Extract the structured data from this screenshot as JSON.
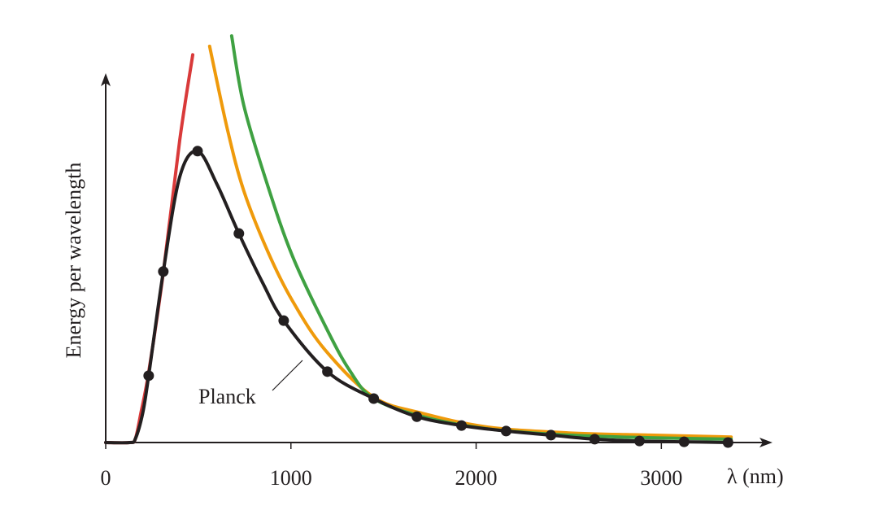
{
  "chart_data": {
    "type": "line",
    "x_label": "λ (nm)",
    "y_label": "Energy per wavelength",
    "xlim": [
      0,
      3600
    ],
    "ylim": [
      0,
      100
    ],
    "xticks": [
      0,
      1000,
      2000,
      3000
    ],
    "series": [
      {
        "color": "#d93a3a",
        "markers": false,
        "x": [
          0,
          130,
          160,
          190,
          232,
          311,
          400,
          470
        ],
        "values": [
          0,
          0,
          1,
          8,
          19,
          46,
          82,
          105
        ]
      },
      {
        "color": "#ef9a0b",
        "markers": false,
        "x": [
          561,
          658,
          746,
          877,
          1009,
          1184,
          1447,
          1711,
          2061,
          2500,
          2939,
          3377
        ],
        "values": [
          107.3,
          84.6,
          68.1,
          51.5,
          38.3,
          25.1,
          12.3,
          7.9,
          4.2,
          2.6,
          2.0,
          1.5
        ]
      },
      {
        "color": "#3fa142",
        "markers": false,
        "x": [
          680,
          746,
          877,
          1009,
          1184,
          1316,
          1447,
          1711,
          2061,
          2500,
          2939,
          3377
        ],
        "values": [
          110.1,
          91.2,
          69.2,
          50.4,
          31.7,
          19.6,
          11.9,
          7.0,
          3.7,
          2.0,
          1.3,
          0.9
        ]
      },
      {
        "name": "Planck",
        "color": "#231f20",
        "markers": false,
        "x": [
          0,
          130,
          160,
          200,
          232,
          311,
          400,
          496,
          600,
          719,
          850,
          961,
          1197,
          1447,
          1680,
          1921,
          2162,
          2404,
          2640,
          2882,
          3123,
          3360
        ],
        "values": [
          0,
          0,
          1,
          8,
          18.1,
          46.3,
          72,
          78.9,
          70,
          56.6,
          43,
          33,
          19.2,
          11.9,
          7.0,
          4.6,
          3.1,
          2.0,
          0.9,
          0.4,
          0.2,
          0
        ]
      },
      {
        "color": "#231f20",
        "markers": true,
        "line": false,
        "x": [
          232,
          311,
          496,
          719,
          961,
          1197,
          1447,
          1680,
          1921,
          2162,
          2404,
          2640,
          2882,
          3123,
          3360
        ],
        "values": [
          18.1,
          46.3,
          78.9,
          56.6,
          33.0,
          19.2,
          11.9,
          7.0,
          4.6,
          3.1,
          2.0,
          0.9,
          0.4,
          0.2,
          0
        ]
      }
    ]
  }
}
